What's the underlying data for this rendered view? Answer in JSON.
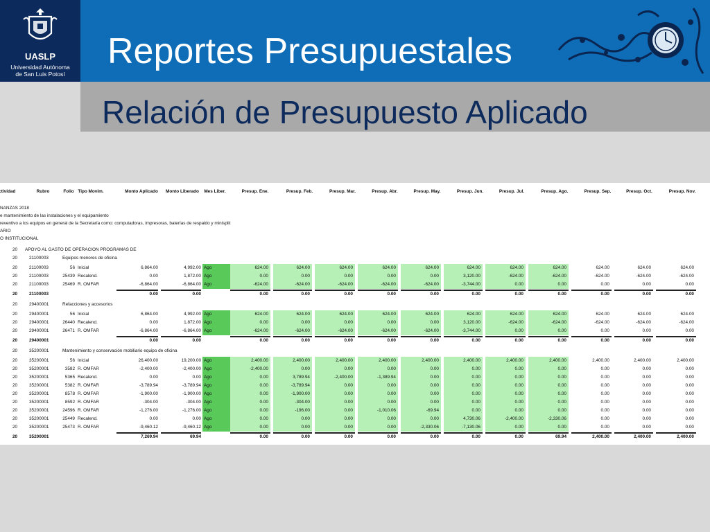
{
  "header": {
    "logo_name": "UASLP",
    "logo_sub_1": "Universidad Autónoma",
    "logo_sub_2": "de San Luis Potosí",
    "title": "Reportes Presupuestales",
    "subtitle": "Relación de Presupuesto Aplicado"
  },
  "colors": {
    "navy": "#0d2a5c",
    "blue": "#0f6db8",
    "gray_band": "#a9a9a9",
    "green_cell": "#b6f0b6",
    "green_month": "#59c95a"
  },
  "report": {
    "columns": [
      "Actividad",
      "Rubro",
      "Folio",
      "Tipo Movim.",
      "Monto Aplicado",
      "Monto Liberado",
      "Mes Liber.",
      "Presup. Ene.",
      "Presup. Feb.",
      "Presup. Mar.",
      "Presup. Abr.",
      "Presup. May.",
      "Presup. Jun.",
      "Presup. Jul.",
      "Presup. Ago.",
      "Presup. Sep.",
      "Presup. Oct.",
      "Presup. Nov."
    ],
    "info_lines": [
      "NANZAS 2018",
      "e mantenimiento de las instalaciones y el equipamiento",
      "reventivo a los equipos en general de la Secretaría como: computadoras, impresoras, baterías de respaldo y minisplit",
      "ARIO",
      "O INSTITUCIONAL"
    ],
    "program": {
      "code": "20",
      "name": "APOYO AL GASTO DE OPERACION PROGRAMAS DE"
    },
    "groups": [
      {
        "act": "20",
        "code": "21100003",
        "name": "Equipos menores de oficina",
        "rows": [
          {
            "act": "20",
            "rubro": "21100003",
            "folio": "56",
            "tipo": "Inicial",
            "aplicado": "6,864.00",
            "liberado": "4,992.00",
            "mes": "Ago",
            "months": [
              "624.00",
              "624.00",
              "624.00",
              "624.00",
              "624.00",
              "624.00",
              "624.00",
              "624.00",
              "624.00",
              "624.00",
              "624.00"
            ]
          },
          {
            "act": "20",
            "rubro": "21100003",
            "folio": "25439",
            "tipo": "Recalend.",
            "aplicado": "0.00",
            "liberado": "1,872.00",
            "mes": "Ago",
            "months": [
              "0.00",
              "0.00",
              "0.00",
              "0.00",
              "0.00",
              "3,120.00",
              "-624.00",
              "-624.00",
              "-624.00",
              "-624.00",
              "-624.00"
            ]
          },
          {
            "act": "20",
            "rubro": "21100003",
            "folio": "25469",
            "tipo": "R. OMFAR",
            "aplicado": "-6,864.00",
            "liberado": "-6,864.00",
            "mes": "Ago",
            "months": [
              "-624.00",
              "-624.00",
              "-624.00",
              "-624.00",
              "-624.00",
              "-3,744.00",
              "0.00",
              "0.00",
              "0.00",
              "0.00",
              "0.00"
            ]
          }
        ],
        "total": {
          "act": "20",
          "rubro": "21100003",
          "aplicado": "0.00",
          "liberado": "0.00",
          "months": [
            "0.00",
            "0.00",
            "0.00",
            "0.00",
            "0.00",
            "0.00",
            "0.00",
            "0.00",
            "0.00",
            "0.00",
            "0.00"
          ]
        }
      },
      {
        "act": "20",
        "code": "29400001",
        "name": "Refacciones y accesorios",
        "rows": [
          {
            "act": "20",
            "rubro": "29400001",
            "folio": "56",
            "tipo": "Inicial",
            "aplicado": "6,864.00",
            "liberado": "4,992.00",
            "mes": "Ago",
            "months": [
              "624.00",
              "624.00",
              "624.00",
              "624.00",
              "624.00",
              "624.00",
              "624.00",
              "624.00",
              "624.00",
              "624.00",
              "624.00"
            ]
          },
          {
            "act": "20",
            "rubro": "29400001",
            "folio": "26440",
            "tipo": "Recalend.",
            "aplicado": "0.00",
            "liberado": "1,872.00",
            "mes": "Ago",
            "months": [
              "0.00",
              "0.00",
              "0.00",
              "0.00",
              "0.00",
              "3,120.00",
              "-624.00",
              "-624.00",
              "-624.00",
              "-624.00",
              "-624.00"
            ]
          },
          {
            "act": "20",
            "rubro": "29400001",
            "folio": "26471",
            "tipo": "R. OMFAR",
            "aplicado": "-6,864.00",
            "liberado": "-6,864.00",
            "mes": "Ago",
            "months": [
              "-624.00",
              "-624.00",
              "-624.00",
              "-624.00",
              "-624.00",
              "-3,744.00",
              "0.00",
              "0.00",
              "0.00",
              "0.00",
              "0.00"
            ]
          }
        ],
        "total": {
          "act": "20",
          "rubro": "29400001",
          "aplicado": "0.00",
          "liberado": "0.00",
          "months": [
            "0.00",
            "0.00",
            "0.00",
            "0.00",
            "0.00",
            "0.00",
            "0.00",
            "0.00",
            "0.00",
            "0.00",
            "0.00"
          ]
        }
      },
      {
        "act": "20",
        "code": "35200001",
        "name": "Mantenimiento y conservación mobiliario equipo de oficina",
        "rows": [
          {
            "act": "20",
            "rubro": "35200001",
            "folio": "56",
            "tipo": "Inicial",
            "aplicado": "26,400.00",
            "liberado": "19,200.00",
            "mes": "Ago",
            "months": [
              "2,400.00",
              "2,400.00",
              "2,400.00",
              "2,400.00",
              "2,400.00",
              "2,400.00",
              "2,400.00",
              "2,400.00",
              "2,400.00",
              "2,400.00",
              "2,400.00"
            ]
          },
          {
            "act": "20",
            "rubro": "35200001",
            "folio": "3582",
            "tipo": "R. OMFAR",
            "aplicado": "-2,400.00",
            "liberado": "-2,400.00",
            "mes": "Ago",
            "months": [
              "-2,400.00",
              "0.00",
              "0.00",
              "0.00",
              "0.00",
              "0.00",
              "0.00",
              "0.00",
              "0.00",
              "0.00",
              "0.00"
            ]
          },
          {
            "act": "20",
            "rubro": "35200001",
            "folio": "5365",
            "tipo": "Recalend.",
            "aplicado": "0.00",
            "liberado": "0.00",
            "mes": "Ago",
            "months": [
              "0.00",
              "3,789.94",
              "-2,400.00",
              "-1,389.94",
              "0.00",
              "0.00",
              "0.00",
              "0.00",
              "0.00",
              "0.00",
              "0.00"
            ]
          },
          {
            "act": "20",
            "rubro": "35200001",
            "folio": "5382",
            "tipo": "R. OMFAR",
            "aplicado": "-3,789.94",
            "liberado": "-3,789.94",
            "mes": "Ago",
            "months": [
              "0.00",
              "-3,789.94",
              "0.00",
              "0.00",
              "0.00",
              "0.00",
              "0.00",
              "0.00",
              "0.00",
              "0.00",
              "0.00"
            ]
          },
          {
            "act": "20",
            "rubro": "35200001",
            "folio": "8578",
            "tipo": "R. OMFAR",
            "aplicado": "-1,900.00",
            "liberado": "-1,900.00",
            "mes": "Ago",
            "months": [
              "0.00",
              "-1,900.00",
              "0.00",
              "0.00",
              "0.00",
              "0.00",
              "0.00",
              "0.00",
              "0.00",
              "0.00",
              "0.00"
            ]
          },
          {
            "act": "20",
            "rubro": "35200001",
            "folio": "8592",
            "tipo": "R. OMFAR",
            "aplicado": "-304.00",
            "liberado": "-304.00",
            "mes": "Ago",
            "months": [
              "0.00",
              "-304.00",
              "0.00",
              "0.00",
              "0.00",
              "0.00",
              "0.00",
              "0.00",
              "0.00",
              "0.00",
              "0.00"
            ]
          },
          {
            "act": "20",
            "rubro": "35200001",
            "folio": "24596",
            "tipo": "R. OMFAR",
            "aplicado": "-1,276.00",
            "liberado": "-1,276.00",
            "mes": "Ago",
            "months": [
              "0.00",
              "-196.00",
              "0.00",
              "-1,010.06",
              "-69.94",
              "0.00",
              "0.00",
              "0.00",
              "0.00",
              "0.00",
              "0.00"
            ]
          },
          {
            "act": "20",
            "rubro": "35200001",
            "folio": "25449",
            "tipo": "Recalend.",
            "aplicado": "0.00",
            "liberado": "0.00",
            "mes": "Ago",
            "months": [
              "0.00",
              "0.00",
              "0.00",
              "0.00",
              "0.00",
              "4,730.06",
              "-2,400.00",
              "-2,330.06",
              "0.00",
              "0.00",
              "0.00"
            ]
          },
          {
            "act": "20",
            "rubro": "35200001",
            "folio": "25473",
            "tipo": "R. OMFAR",
            "aplicado": "-9,460.12",
            "liberado": "-9,460.12",
            "mes": "Ago",
            "months": [
              "0.00",
              "0.00",
              "0.00",
              "0.00",
              "-2,330.06",
              "-7,130.06",
              "0.00",
              "0.00",
              "0.00",
              "0.00",
              "0.00"
            ]
          }
        ],
        "total": {
          "act": "20",
          "rubro": "35200001",
          "aplicado": "7,269.94",
          "liberado": "69.94",
          "months": [
            "0.00",
            "0.00",
            "0.00",
            "0.00",
            "0.00",
            "0.00",
            "0.00",
            "69.94",
            "2,400.00",
            "2,400.00",
            "2,400.00"
          ]
        }
      }
    ]
  }
}
